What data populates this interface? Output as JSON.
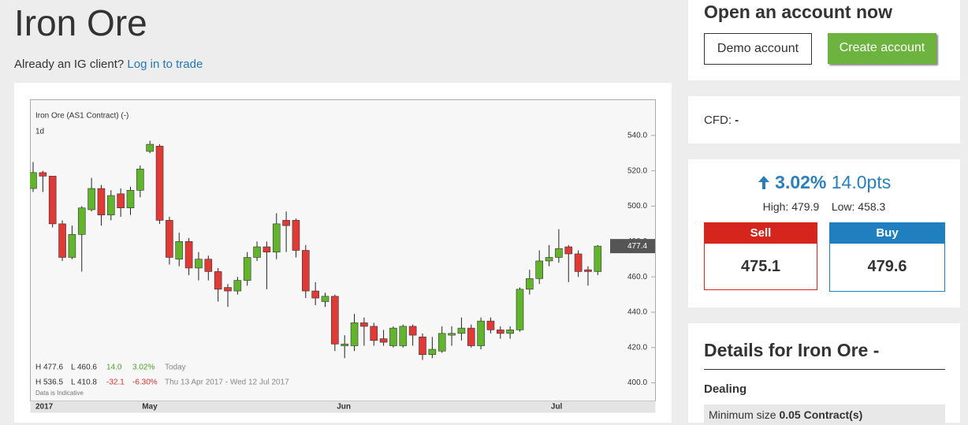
{
  "header": {
    "title": "Iron Ore",
    "client_prompt": "Already an IG client?",
    "login_link": "Log in to trade"
  },
  "chart_data": {
    "type": "candlestick",
    "title": "Iron Ore (AS1 Contract) (-)",
    "interval": "1d",
    "categories": [
      "2017",
      null,
      null,
      null,
      null,
      null,
      null,
      null,
      null,
      null,
      null,
      null,
      "May",
      null,
      null,
      null,
      null,
      null,
      null,
      null,
      null,
      null,
      null,
      null,
      null,
      null,
      null,
      null,
      null,
      null,
      null,
      null,
      "Jun",
      null,
      null,
      null,
      null,
      null,
      null,
      null,
      null,
      null,
      null,
      null,
      null,
      null,
      null,
      null,
      null,
      null,
      null,
      null,
      null,
      null,
      "Jul",
      null,
      null,
      null,
      null
    ],
    "open": [
      510,
      519,
      517,
      490,
      471,
      484,
      498,
      510,
      495,
      507,
      499,
      509,
      531,
      534,
      492,
      470,
      480,
      465,
      470,
      463,
      454,
      452,
      458,
      471,
      477,
      474,
      492,
      492,
      475,
      452,
      446,
      449,
      421,
      421,
      434,
      432,
      425,
      421,
      421,
      432,
      426,
      416,
      418,
      427,
      428,
      431,
      421,
      435,
      430,
      428,
      430,
      453,
      459,
      469,
      471,
      477,
      473,
      464,
      463
    ],
    "high": [
      525,
      520,
      517,
      492,
      489,
      500,
      516,
      512,
      509,
      510,
      511,
      523,
      537,
      535,
      494,
      485,
      482,
      474,
      472,
      465,
      456,
      460,
      474,
      480,
      480,
      496,
      497,
      493,
      478,
      457,
      451,
      450,
      427,
      439,
      437,
      434,
      430,
      432,
      433,
      433,
      428,
      426,
      432,
      432,
      437,
      433,
      437,
      437,
      432,
      432,
      454,
      464,
      475,
      478,
      487,
      478,
      475,
      466,
      478
    ],
    "low": [
      508,
      508,
      488,
      469,
      470,
      463,
      497,
      489,
      492,
      494,
      495,
      505,
      530,
      490,
      467,
      466,
      461,
      458,
      458,
      446,
      443,
      450,
      455,
      469,
      453,
      470,
      474,
      471,
      448,
      444,
      443,
      418,
      414,
      418,
      421,
      421,
      421,
      420,
      420,
      421,
      413,
      414,
      417,
      421,
      424,
      420,
      419,
      428,
      425,
      425,
      429,
      450,
      456,
      466,
      468,
      457,
      460,
      455,
      461
    ],
    "close": [
      519,
      517,
      490,
      471,
      484,
      499,
      510,
      495,
      506,
      499,
      509,
      521,
      535,
      492,
      471,
      480,
      465,
      470,
      463,
      453,
      452,
      458,
      471,
      477,
      474,
      490,
      489,
      475,
      452,
      448,
      449,
      422,
      422,
      434,
      432,
      424,
      423,
      431,
      432,
      427,
      416,
      419,
      428,
      428,
      431,
      421,
      435,
      430,
      428,
      430,
      453,
      459,
      469,
      471,
      476,
      473,
      463,
      463,
      477.4
    ],
    "up_color": "#63b42d",
    "down_color": "#e03a36",
    "ylim": [
      390,
      560
    ],
    "yticks": [
      {
        "value": 400,
        "label": "400.0"
      },
      {
        "value": 420,
        "label": "420.0"
      },
      {
        "value": 440,
        "label": "440.0"
      },
      {
        "value": 460,
        "label": "460.0"
      },
      {
        "value": 480,
        "label": "480.0"
      },
      {
        "value": 500,
        "label": "500.0"
      },
      {
        "value": 520,
        "label": "520.0"
      },
      {
        "value": 540,
        "label": "540.0"
      }
    ],
    "last_price": 477.4,
    "stats": [
      {
        "high": "H 477.6",
        "low": "L 460.6",
        "change": "14.0",
        "change_pct": "3.02%",
        "period": "Today"
      },
      {
        "high": "H 536.5",
        "low": "L 410.8",
        "change": "-32.1",
        "change_pct": "-6.30%",
        "period": "Thu 13 Apr 2017 - Wed 12 Jul 2017"
      }
    ],
    "footnote": "Data is Indicative"
  },
  "sidebar": {
    "account": {
      "title": "Open an account now",
      "demo": "Demo account",
      "create": "Create account"
    },
    "cfd": {
      "label": "CFD:",
      "value": "-"
    },
    "quote": {
      "change_pct": "3.02%",
      "change_pts": "14.0pts",
      "high_label": "High:",
      "high": "479.9",
      "low_label": "Low:",
      "low": "458.3",
      "sell_label": "Sell",
      "sell": "475.1",
      "buy_label": "Buy",
      "buy": "479.6"
    },
    "details": {
      "title": "Details for Iron Ore -",
      "section": "Dealing",
      "min_size_label": "Minimum size",
      "min_size": "0.05 Contract(s)"
    }
  }
}
